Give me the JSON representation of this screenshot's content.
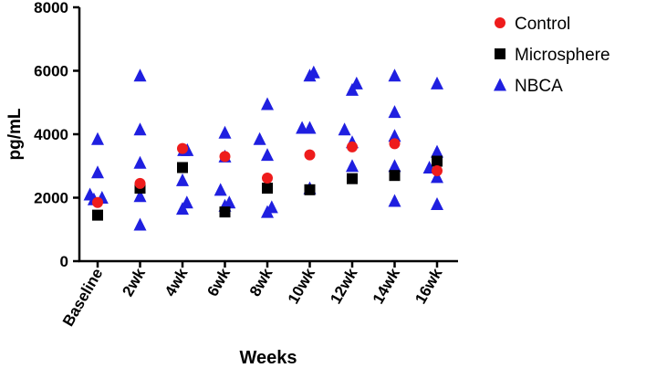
{
  "chart_data": {
    "type": "scatter",
    "xlabel": "Weeks",
    "ylabel": "pg/mL",
    "ylim": [
      0,
      8000
    ],
    "yticks": [
      0,
      2000,
      4000,
      6000,
      8000
    ],
    "ytick_labels": [
      "0",
      "2000",
      "4000",
      "6000",
      "8000"
    ],
    "categories": [
      "Baseline",
      "2wk",
      "4wk",
      "6wk",
      "8wk",
      "10wk",
      "12wk",
      "14wk",
      "16wk"
    ],
    "legend_position": "top-right",
    "series": [
      {
        "name": "Control",
        "marker": "circle",
        "color": "#ee1c1c",
        "points": [
          {
            "category": "Baseline",
            "value": 1850
          },
          {
            "category": "2wk",
            "value": 2450
          },
          {
            "category": "4wk",
            "value": 3550
          },
          {
            "category": "6wk",
            "value": 3300
          },
          {
            "category": "8wk",
            "value": 2620
          },
          {
            "category": "10wk",
            "value": 3350
          },
          {
            "category": "12wk",
            "value": 3600
          },
          {
            "category": "14wk",
            "value": 3700
          },
          {
            "category": "16wk",
            "value": 2850
          }
        ]
      },
      {
        "name": "Microsphere",
        "marker": "square",
        "color": "#000000",
        "points": [
          {
            "category": "Baseline",
            "value": 1450
          },
          {
            "category": "2wk",
            "value": 2300
          },
          {
            "category": "4wk",
            "value": 2950
          },
          {
            "category": "6wk",
            "value": 1550
          },
          {
            "category": "8wk",
            "value": 2300
          },
          {
            "category": "10wk",
            "value": 2250
          },
          {
            "category": "12wk",
            "value": 2600
          },
          {
            "category": "14wk",
            "value": 2700
          },
          {
            "category": "16wk",
            "value": 3150
          }
        ]
      },
      {
        "name": "NBCA",
        "marker": "triangle",
        "color": "#1f1fe0",
        "points": [
          {
            "category": "Baseline",
            "value": 2100,
            "offset": -0.35
          },
          {
            "category": "Baseline",
            "value": 1950,
            "offset": -0.17
          },
          {
            "category": "Baseline",
            "value": 3850,
            "offset": 0.0
          },
          {
            "category": "Baseline",
            "value": 2800,
            "offset": 0.0
          },
          {
            "category": "Baseline",
            "value": 2000,
            "offset": 0.2
          },
          {
            "category": "2wk",
            "value": 5850,
            "offset": 0.0
          },
          {
            "category": "2wk",
            "value": 4150,
            "offset": 0.0
          },
          {
            "category": "2wk",
            "value": 3100,
            "offset": 0.0
          },
          {
            "category": "2wk",
            "value": 2050,
            "offset": 0.0
          },
          {
            "category": "2wk",
            "value": 1150,
            "offset": 0.0
          },
          {
            "category": "4wk",
            "value": 3500,
            "offset": 0.05
          },
          {
            "category": "4wk",
            "value": 3500,
            "offset": 0.22
          },
          {
            "category": "4wk",
            "value": 2550,
            "offset": 0.0
          },
          {
            "category": "4wk",
            "value": 1850,
            "offset": 0.2
          },
          {
            "category": "4wk",
            "value": 1650,
            "offset": 0.0
          },
          {
            "category": "6wk",
            "value": 4050,
            "offset": 0.0
          },
          {
            "category": "6wk",
            "value": 3300,
            "offset": 0.0
          },
          {
            "category": "6wk",
            "value": 2250,
            "offset": -0.2
          },
          {
            "category": "6wk",
            "value": 1850,
            "offset": 0.2
          },
          {
            "category": "6wk",
            "value": 1750,
            "offset": 0.0
          },
          {
            "category": "8wk",
            "value": 3850,
            "offset": -0.35
          },
          {
            "category": "8wk",
            "value": 4950,
            "offset": 0.0
          },
          {
            "category": "8wk",
            "value": 3350,
            "offset": 0.0
          },
          {
            "category": "8wk",
            "value": 1700,
            "offset": 0.2
          },
          {
            "category": "8wk",
            "value": 1550,
            "offset": 0.0
          },
          {
            "category": "10wk",
            "value": 4200,
            "offset": -0.35
          },
          {
            "category": "10wk",
            "value": 5850,
            "offset": 0.0
          },
          {
            "category": "10wk",
            "value": 5950,
            "offset": 0.18
          },
          {
            "category": "10wk",
            "value": 4200,
            "offset": 0.0
          },
          {
            "category": "10wk",
            "value": 2300,
            "offset": 0.0
          },
          {
            "category": "12wk",
            "value": 4150,
            "offset": -0.35
          },
          {
            "category": "12wk",
            "value": 5400,
            "offset": 0.0
          },
          {
            "category": "12wk",
            "value": 5600,
            "offset": 0.2
          },
          {
            "category": "12wk",
            "value": 3750,
            "offset": 0.0
          },
          {
            "category": "12wk",
            "value": 3000,
            "offset": 0.0
          },
          {
            "category": "14wk",
            "value": 5850,
            "offset": 0.0
          },
          {
            "category": "14wk",
            "value": 4700,
            "offset": 0.0
          },
          {
            "category": "14wk",
            "value": 3950,
            "offset": 0.0
          },
          {
            "category": "14wk",
            "value": 3000,
            "offset": 0.0
          },
          {
            "category": "14wk",
            "value": 1900,
            "offset": 0.0
          },
          {
            "category": "16wk",
            "value": 2950,
            "offset": -0.35
          },
          {
            "category": "16wk",
            "value": 5600,
            "offset": 0.0
          },
          {
            "category": "16wk",
            "value": 3450,
            "offset": 0.0
          },
          {
            "category": "16wk",
            "value": 2650,
            "offset": 0.0
          },
          {
            "category": "16wk",
            "value": 1800,
            "offset": 0.0
          }
        ]
      }
    ]
  }
}
